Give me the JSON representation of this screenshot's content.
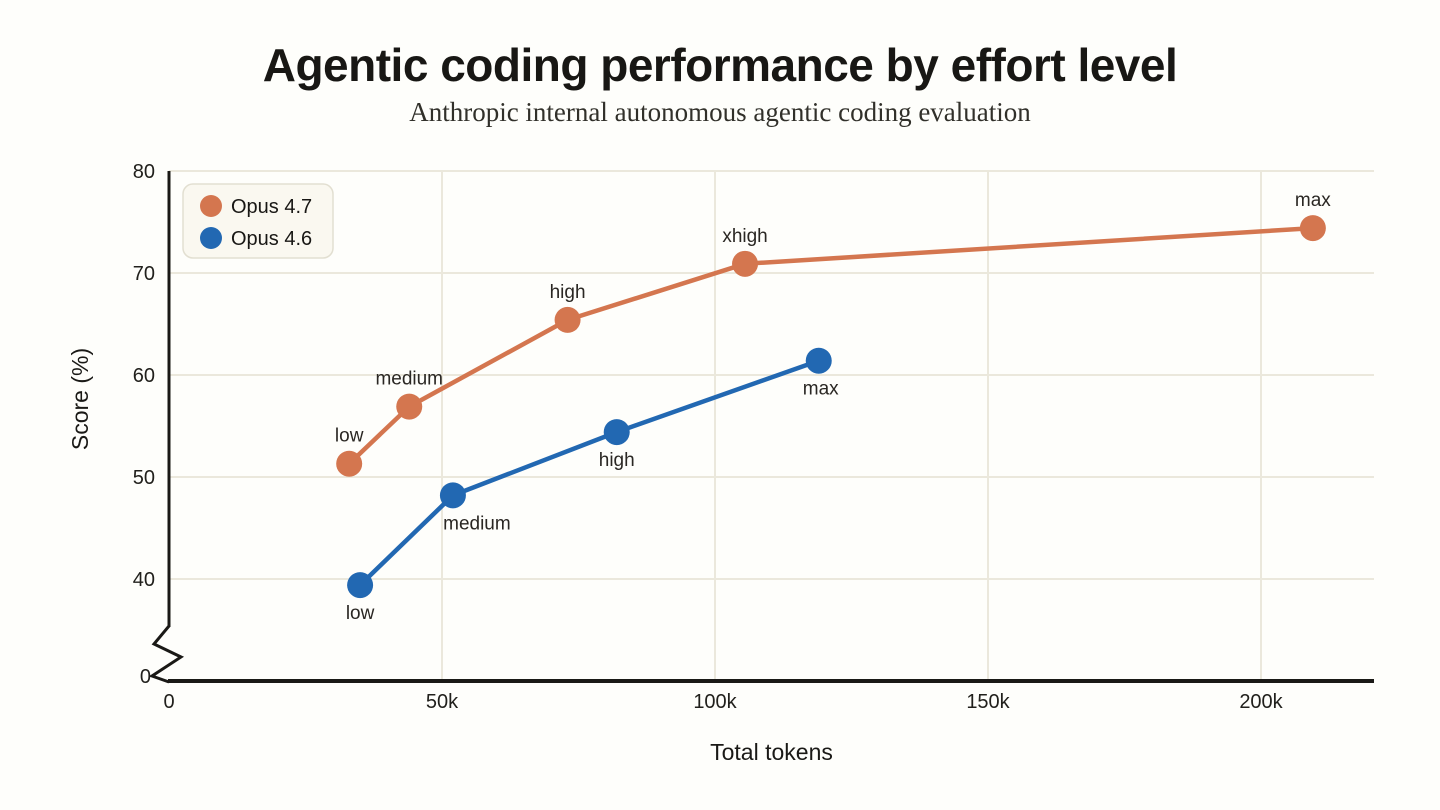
{
  "page": {
    "background": "#fefefb",
    "plot_background": "#fefefb",
    "gridline_color": "#ebe8dc",
    "axis_color": "#1a1916",
    "tick_label_color": "#21201c",
    "point_label_color": "#2a2723"
  },
  "chart_data": {
    "type": "line",
    "title": "Agentic coding performance by effort level",
    "subtitle": "Anthropic internal autonomous agentic coding evaluation",
    "xlabel": "Total tokens",
    "ylabel": "Score (%)",
    "x_ticks": [
      {
        "value": 0,
        "label": "0"
      },
      {
        "value": 50000,
        "label": "50k"
      },
      {
        "value": 100000,
        "label": "100k"
      },
      {
        "value": 150000,
        "label": "150k"
      },
      {
        "value": 200000,
        "label": "200k"
      }
    ],
    "y_ticks_upper": [
      {
        "value": 40,
        "label": "40"
      },
      {
        "value": 50,
        "label": "50"
      },
      {
        "value": 60,
        "label": "60"
      },
      {
        "value": 70,
        "label": "70"
      },
      {
        "value": 80,
        "label": "80"
      }
    ],
    "y_tick_zero_label": "0",
    "axis_break": true,
    "xlim": [
      0,
      221000
    ],
    "ylim_upper": [
      40,
      80
    ],
    "grid": true,
    "legend": {
      "position": "top-left",
      "background": "#faf8f0",
      "border": "#e2dfd1"
    },
    "series": [
      {
        "name": "Opus 4.7",
        "color": "#d4764f",
        "label_side": "above",
        "points": [
          {
            "label": "low",
            "x": 33000,
            "y": 51.3
          },
          {
            "label": "medium",
            "x": 44000,
            "y": 56.9
          },
          {
            "label": "high",
            "x": 73000,
            "y": 65.4
          },
          {
            "label": "xhigh",
            "x": 105500,
            "y": 70.9
          },
          {
            "label": "max",
            "x": 209500,
            "y": 74.4
          }
        ]
      },
      {
        "name": "Opus 4.6",
        "color": "#2268b2",
        "label_side": "below",
        "points": [
          {
            "label": "low",
            "x": 35000,
            "y": 39.4,
            "label_dx": 0
          },
          {
            "label": "medium",
            "x": 52000,
            "y": 48.2,
            "label_dx": 24
          },
          {
            "label": "high",
            "x": 82000,
            "y": 54.4,
            "label_dx": 0
          },
          {
            "label": "max",
            "x": 119000,
            "y": 61.4,
            "label_dx": 2
          }
        ]
      }
    ]
  }
}
